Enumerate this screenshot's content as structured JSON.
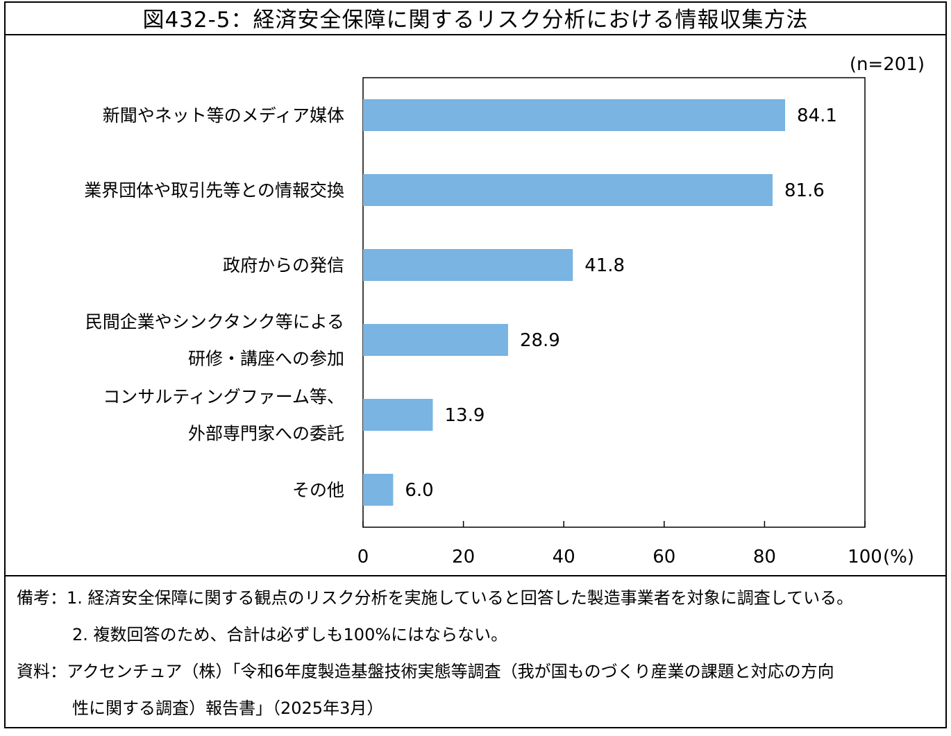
{
  "figure": {
    "title": "図432-5：経済安全保障に関するリスク分析における情報収集方法"
  },
  "chart_data": {
    "type": "bar",
    "orientation": "horizontal",
    "n_label": "(n=201)",
    "categories": [
      [
        "新聞やネット等のメディア媒体"
      ],
      [
        "業界団体や取引先等との情報交換"
      ],
      [
        "政府からの発信"
      ],
      [
        "民間企業やシンクタンク等による",
        "研修・講座への参加"
      ],
      [
        "コンサルティングファーム等、",
        "外部専門家への委託"
      ],
      [
        "その他"
      ]
    ],
    "values": [
      84.1,
      81.6,
      41.8,
      28.9,
      13.9,
      6.0
    ],
    "value_labels": [
      "84.1",
      "81.6",
      "41.8",
      "28.9",
      "13.9",
      "6.0"
    ],
    "xlim": [
      0,
      100
    ],
    "xticks": [
      0,
      20,
      40,
      60,
      80,
      100
    ],
    "xtick_labels": [
      "0",
      "20",
      "40",
      "60",
      "80",
      "100"
    ],
    "x_unit": "(%)",
    "bar_color": "#79b4e2",
    "grid": false
  },
  "notes": {
    "biko_label": "備考：",
    "note1": "1. 経済安全保障に関する観点のリスク分析を実施していると回答した製造事業者を対象に調査している。",
    "note2": "2. 複数回答のため、合計は必ずしも100%にはならない。",
    "source_label": "資料：",
    "source_line1": "アクセンチュア（株）「令和6年度製造基盤技術実態等調査（我が国ものづくり産業の課題と対応の方向",
    "source_line2": "性に関する調査）報告書」（2025年3月）"
  }
}
